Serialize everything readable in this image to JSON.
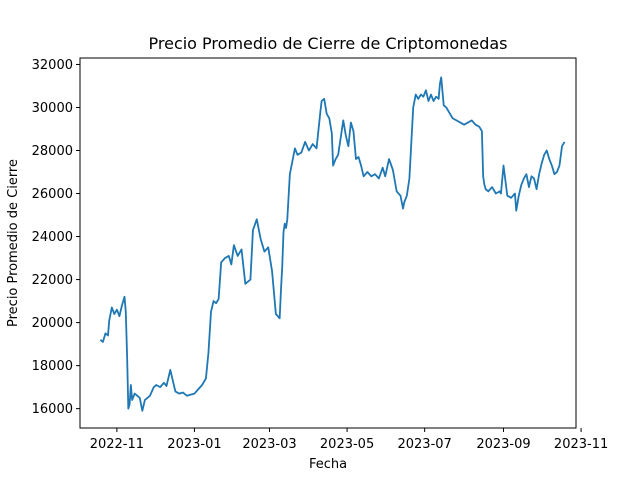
{
  "chart_data": {
    "type": "line",
    "title": "Precio Promedio de Cierre de Criptomonedas",
    "xlabel": "Fecha",
    "ylabel": "Precio Promedio de Cierre",
    "xlim": [
      "2022-10-03",
      "2023-10-28"
    ],
    "ylim": [
      15100,
      32300
    ],
    "x_ticks": [
      "2022-11-01",
      "2023-01-01",
      "2023-03-01",
      "2023-05-01",
      "2023-07-01",
      "2023-09-01",
      "2023-11-01"
    ],
    "x_tick_labels": [
      "2022-11",
      "2023-01",
      "2023-03",
      "2023-05",
      "2023-07",
      "2023-09",
      "2023-11"
    ],
    "y_ticks": [
      16000,
      18000,
      20000,
      22000,
      24000,
      26000,
      28000,
      30000,
      32000
    ],
    "y_tick_labels": [
      "16000",
      "18000",
      "20000",
      "22000",
      "24000",
      "26000",
      "28000",
      "30000",
      "32000"
    ],
    "grid": false,
    "line_color": "#1f77b4",
    "series": [
      {
        "x": [
          "2022-10-19",
          "2022-10-21",
          "2022-10-23",
          "2022-10-25",
          "2022-10-26",
          "2022-10-28",
          "2022-10-30",
          "2022-11-01",
          "2022-11-03",
          "2022-11-05",
          "2022-11-07",
          "2022-11-08",
          "2022-11-09",
          "2022-11-10",
          "2022-11-11",
          "2022-11-12",
          "2022-11-13",
          "2022-11-15",
          "2022-11-17",
          "2022-11-19",
          "2022-11-21",
          "2022-11-23",
          "2022-11-25",
          "2022-11-27",
          "2022-11-30",
          "2022-12-02",
          "2022-12-05",
          "2022-12-08",
          "2022-12-10",
          "2022-12-13",
          "2022-12-15",
          "2022-12-17",
          "2022-12-20",
          "2022-12-23",
          "2022-12-26",
          "2022-12-29",
          "2023-01-01",
          "2023-01-04",
          "2023-01-07",
          "2023-01-10",
          "2023-01-12",
          "2023-01-14",
          "2023-01-16",
          "2023-01-18",
          "2023-01-20",
          "2023-01-22",
          "2023-01-25",
          "2023-01-28",
          "2023-01-30",
          "2023-02-01",
          "2023-02-04",
          "2023-02-07",
          "2023-02-10",
          "2023-02-12",
          "2023-02-14",
          "2023-02-16",
          "2023-02-19",
          "2023-02-22",
          "2023-02-25",
          "2023-02-28",
          "2023-03-03",
          "2023-03-06",
          "2023-03-09",
          "2023-03-10",
          "2023-03-11",
          "2023-03-12",
          "2023-03-13",
          "2023-03-14",
          "2023-03-15",
          "2023-03-17",
          "2023-03-19",
          "2023-03-21",
          "2023-03-23",
          "2023-03-26",
          "2023-03-29",
          "2023-04-01",
          "2023-04-04",
          "2023-04-07",
          "2023-04-10",
          "2023-04-11",
          "2023-04-13",
          "2023-04-15",
          "2023-04-17",
          "2023-04-19",
          "2023-04-20",
          "2023-04-22",
          "2023-04-24",
          "2023-04-26",
          "2023-04-28",
          "2023-04-30",
          "2023-05-02",
          "2023-05-04",
          "2023-05-06",
          "2023-05-08",
          "2023-05-10",
          "2023-05-12",
          "2023-05-14",
          "2023-05-17",
          "2023-05-20",
          "2023-05-23",
          "2023-05-26",
          "2023-05-29",
          "2023-05-31",
          "2023-06-03",
          "2023-06-06",
          "2023-06-09",
          "2023-06-12",
          "2023-06-14",
          "2023-06-15",
          "2023-06-17",
          "2023-06-19",
          "2023-06-21",
          "2023-06-22",
          "2023-06-24",
          "2023-06-26",
          "2023-06-28",
          "2023-06-30",
          "2023-07-02",
          "2023-07-04",
          "2023-07-06",
          "2023-07-08",
          "2023-07-10",
          "2023-07-12",
          "2023-07-13",
          "2023-07-14",
          "2023-07-16",
          "2023-07-18",
          "2023-07-20",
          "2023-07-23",
          "2023-07-26",
          "2023-07-29",
          "2023-08-01",
          "2023-08-04",
          "2023-08-07",
          "2023-08-10",
          "2023-08-13",
          "2023-08-15",
          "2023-08-16",
          "2023-08-17",
          "2023-08-18",
          "2023-08-20",
          "2023-08-23",
          "2023-08-26",
          "2023-08-29",
          "2023-08-30",
          "2023-09-01",
          "2023-09-04",
          "2023-09-07",
          "2023-09-10",
          "2023-09-11",
          "2023-09-13",
          "2023-09-15",
          "2023-09-17",
          "2023-09-19",
          "2023-09-21",
          "2023-09-23",
          "2023-09-25",
          "2023-09-27",
          "2023-09-29",
          "2023-10-01",
          "2023-10-03",
          "2023-10-05",
          "2023-10-07",
          "2023-10-09",
          "2023-10-11",
          "2023-10-13",
          "2023-10-15",
          "2023-10-17",
          "2023-10-19"
        ],
        "y": [
          19200,
          19100,
          19500,
          19400,
          20100,
          20700,
          20400,
          20600,
          20300,
          20800,
          21200,
          20500,
          18500,
          16000,
          16200,
          17100,
          16400,
          16700,
          16600,
          16500,
          15900,
          16400,
          16500,
          16600,
          17000,
          17100,
          17000,
          17200,
          17050,
          17800,
          17300,
          16800,
          16700,
          16750,
          16600,
          16650,
          16700,
          16900,
          17100,
          17400,
          18600,
          20500,
          21000,
          20900,
          21100,
          22800,
          23000,
          23100,
          22700,
          23600,
          23100,
          23400,
          21800,
          21900,
          22000,
          24300,
          24800,
          23900,
          23300,
          23500,
          22400,
          20400,
          20200,
          21500,
          22600,
          24200,
          24600,
          24400,
          24800,
          26900,
          27500,
          28100,
          27800,
          27900,
          28400,
          28000,
          28300,
          28100,
          29800,
          30300,
          30400,
          29700,
          29500,
          28800,
          27300,
          27600,
          27800,
          28600,
          29400,
          28700,
          28200,
          29300,
          28900,
          27600,
          27700,
          27300,
          26800,
          27000,
          26800,
          26900,
          26700,
          27200,
          26800,
          27600,
          27100,
          26100,
          25900,
          25300,
          25600,
          25900,
          26700,
          28900,
          30000,
          30600,
          30400,
          30600,
          30500,
          30800,
          30300,
          30600,
          30300,
          30500,
          30400,
          31100,
          31400,
          30100,
          30000,
          29800,
          29500,
          29400,
          29300,
          29200,
          29300,
          29400,
          29200,
          29100,
          28900,
          26800,
          26400,
          26200,
          26100,
          26300,
          26000,
          26100,
          26000,
          27300,
          25900,
          25800,
          26000,
          25200,
          25900,
          26400,
          26700,
          26900,
          26300,
          26800,
          26700,
          26200,
          26900,
          27400,
          27800,
          28000,
          27600,
          27300,
          26900,
          27000,
          27300,
          28200,
          28400
        ]
      }
    ]
  }
}
